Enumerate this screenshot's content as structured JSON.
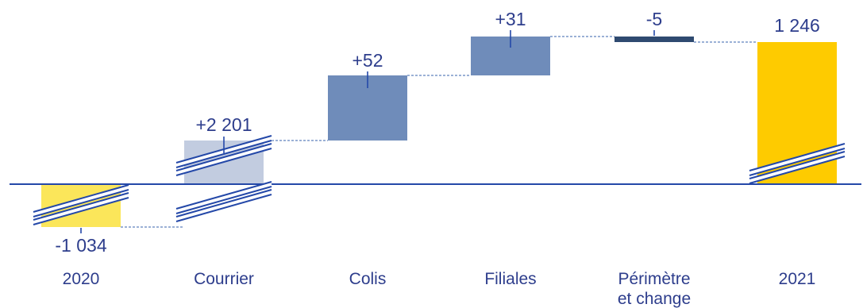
{
  "chart_data": {
    "type": "waterfall",
    "categories": [
      "2020",
      "Courrier",
      "Colis",
      "Filiales",
      "Périmètre\net change",
      "2021"
    ],
    "values": [
      -1034,
      2201,
      52,
      31,
      -5,
      1246
    ],
    "labels": [
      "-1 034",
      "+2 201",
      "+52",
      "+31",
      "-5",
      "1 246"
    ],
    "kinds": [
      "total",
      "delta",
      "delta",
      "delta",
      "delta",
      "total"
    ],
    "axis_breaks": [
      true,
      true,
      false,
      false,
      false,
      true
    ],
    "colors": {
      "total_start": "#fbe65a",
      "courrier": "#c2cce0",
      "increase": "#6f8cba",
      "decrease": "#2f4a70",
      "total_end": "#fecb00",
      "axis": "#2448a8",
      "connector": "#5f82bd",
      "text": "#2d3d8c"
    }
  }
}
